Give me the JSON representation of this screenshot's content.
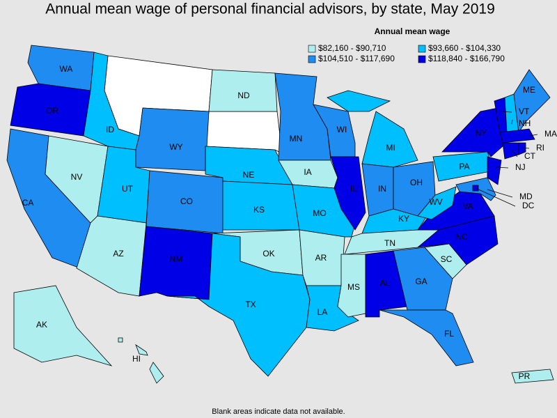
{
  "title": "Annual mean wage of personal financial advisors, by state, May 2019",
  "legend": {
    "title": "Annual mean wage",
    "items": [
      {
        "label": "$82,160 - $90,710",
        "color": "#aeeeee"
      },
      {
        "label": "$93,660 - $104,330",
        "color": "#00bfff"
      },
      {
        "label": "$104,510 - $117,690",
        "color": "#1e8cf0"
      },
      {
        "label": "$118,840 - $166,790",
        "color": "#0000e6"
      }
    ]
  },
  "states": [
    {
      "label": "WA",
      "color": "#1e8cf0"
    },
    {
      "label": "OR",
      "color": "#0000e6"
    },
    {
      "label": "CA",
      "color": "#1e8cf0"
    },
    {
      "label": "NV",
      "color": "#aeeeee"
    },
    {
      "label": "ID",
      "color": "#00bfff"
    },
    {
      "label": "WY",
      "color": "#1e8cf0"
    },
    {
      "label": "UT",
      "color": "#00bfff"
    },
    {
      "label": "AZ",
      "color": "#aeeeee"
    },
    {
      "label": "CO",
      "color": "#1e8cf0"
    },
    {
      "label": "NM",
      "color": "#0000e6"
    },
    {
      "label": "ND",
      "color": "#aeeeee"
    },
    {
      "label": "NE",
      "color": "#00bfff"
    },
    {
      "label": "KS",
      "color": "#00bfff"
    },
    {
      "label": "OK",
      "color": "#aeeeee"
    },
    {
      "label": "TX",
      "color": "#00bfff"
    },
    {
      "label": "MN",
      "color": "#1e8cf0"
    },
    {
      "label": "IA",
      "color": "#aeeeee"
    },
    {
      "label": "MO",
      "color": "#00bfff"
    },
    {
      "label": "AR",
      "color": "#aeeeee"
    },
    {
      "label": "LA",
      "color": "#00bfff"
    },
    {
      "label": "WI",
      "color": "#1e8cf0"
    },
    {
      "label": "IL",
      "color": "#0000e6"
    },
    {
      "label": "MI",
      "color": "#00bfff"
    },
    {
      "label": "IN",
      "color": "#1e8cf0"
    },
    {
      "label": "OH",
      "color": "#1e8cf0"
    },
    {
      "label": "KY",
      "color": "#00bfff"
    },
    {
      "label": "TN",
      "color": "#aeeeee"
    },
    {
      "label": "MS",
      "color": "#aeeeee"
    },
    {
      "label": "AL",
      "color": "#0000e6"
    },
    {
      "label": "GA",
      "color": "#1e8cf0"
    },
    {
      "label": "FL",
      "color": "#1e8cf0"
    },
    {
      "label": "SC",
      "color": "#aeeeee"
    },
    {
      "label": "NC",
      "color": "#0000e6"
    },
    {
      "label": "VA",
      "color": "#0000e6"
    },
    {
      "label": "WV",
      "color": "#00bfff"
    },
    {
      "label": "PA",
      "color": "#00bfff"
    },
    {
      "label": "NY",
      "color": "#0000e6"
    },
    {
      "label": "NJ",
      "color": "#0000e6"
    },
    {
      "label": "MD",
      "color": "#1e8cf0"
    },
    {
      "label": "DC",
      "color": "#0000e6"
    },
    {
      "label": "VT",
      "color": "#0000e6"
    },
    {
      "label": "NH",
      "color": "#00bfff"
    },
    {
      "label": "ME",
      "color": "#1e8cf0"
    },
    {
      "label": "MA",
      "color": "#0000e6"
    },
    {
      "label": "RI",
      "color": "#0000e6"
    },
    {
      "label": "CT",
      "color": "#0000e6"
    },
    {
      "label": "AK",
      "color": "#aeeeee"
    },
    {
      "label": "HI",
      "color": "#aeeeee"
    },
    {
      "label": "PR",
      "color": "#aeeeee"
    }
  ],
  "footnote": "Blank areas indicate data not available."
}
